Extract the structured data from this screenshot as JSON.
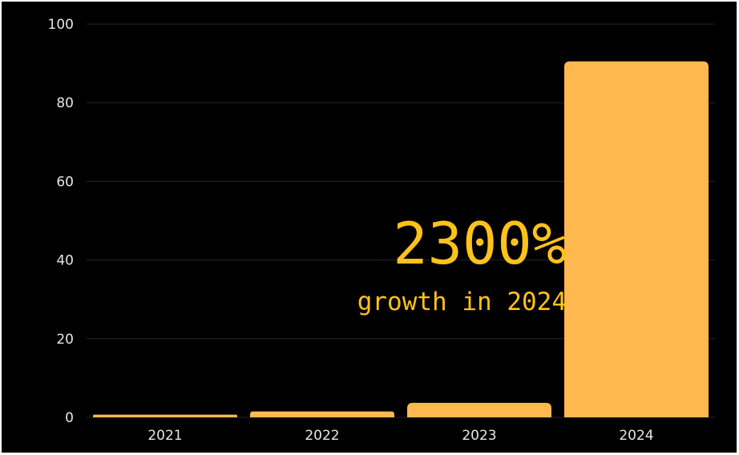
{
  "chart_data": {
    "type": "bar",
    "categories": [
      "2021",
      "2022",
      "2023",
      "2024"
    ],
    "values": [
      0.7,
      1.5,
      3.7,
      90.5
    ],
    "ylim": [
      0,
      100
    ],
    "yticks": [
      0,
      20,
      40,
      60,
      80,
      100
    ],
    "grid": true,
    "bar_color": "#ffb94f",
    "background": "#000000",
    "annotation": {
      "headline": "2300%",
      "subline": "growth in 2024",
      "color": "#ffc21a"
    }
  }
}
